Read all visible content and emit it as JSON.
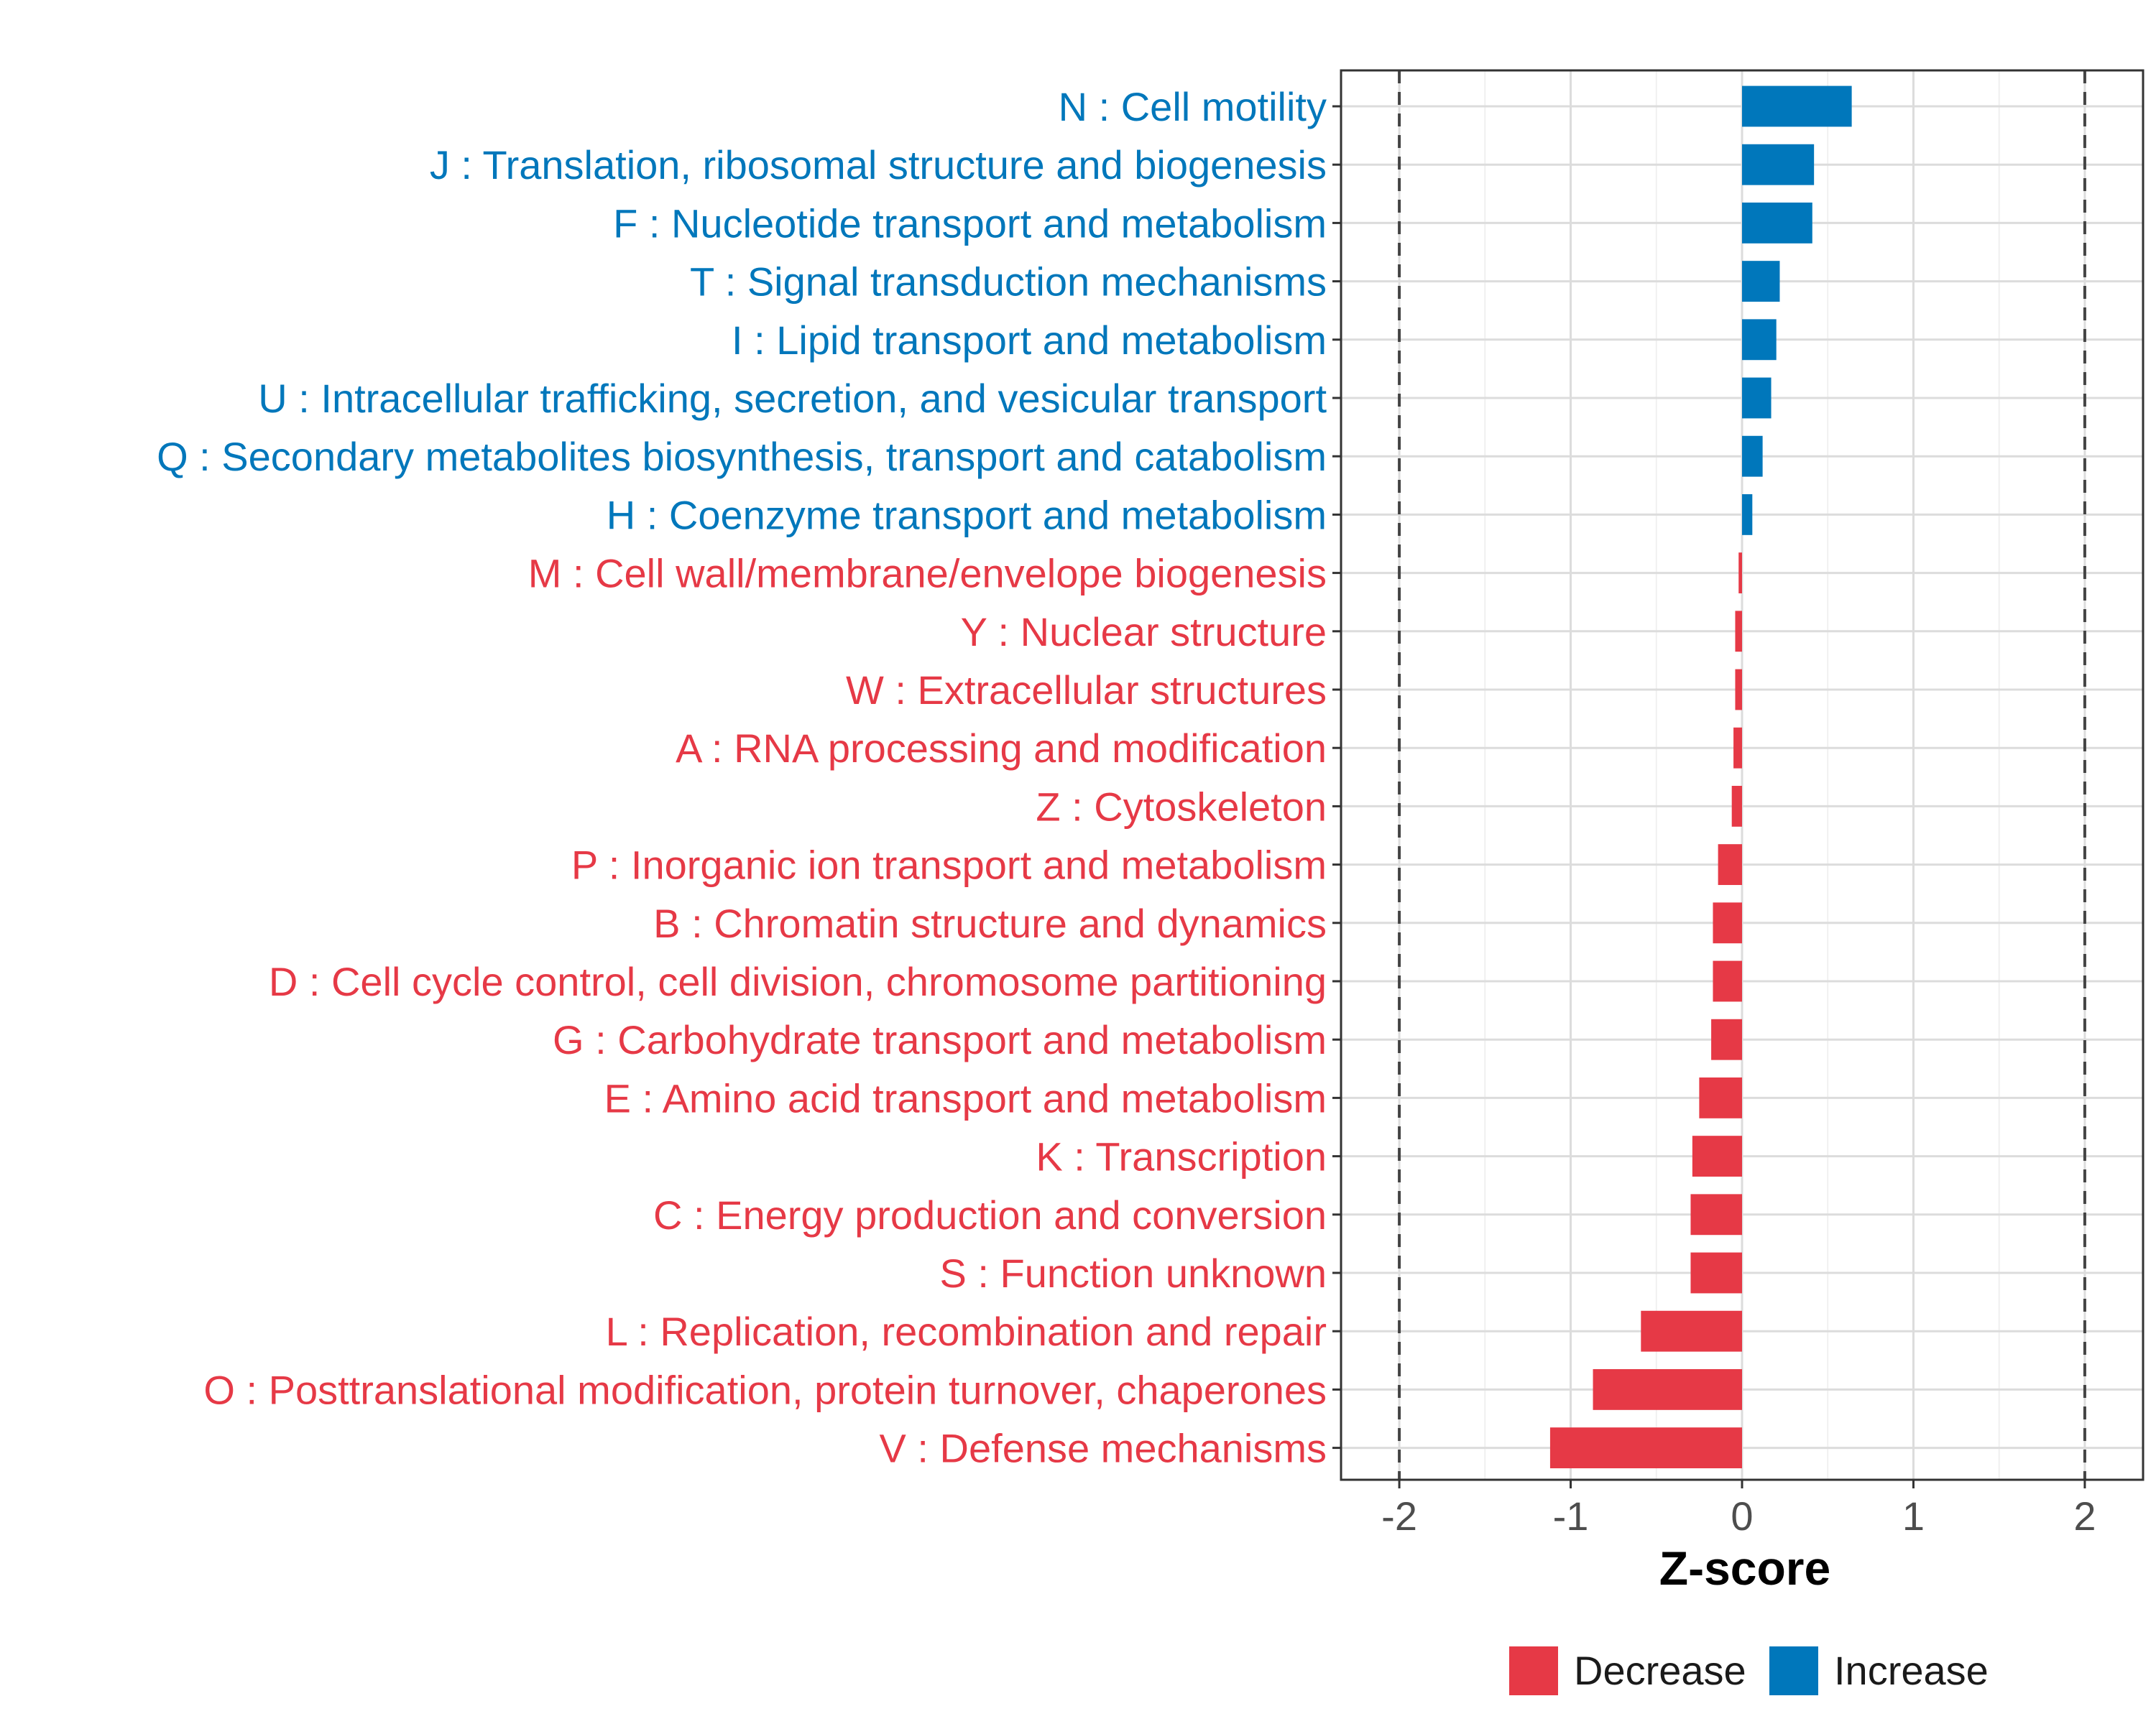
{
  "chart_data": {
    "type": "bar",
    "orientation": "horizontal",
    "xlabel": "Z-score",
    "ylabel": "",
    "xlim": [
      -2.34,
      2.34
    ],
    "xticks": [
      -2,
      -1,
      0,
      1,
      2
    ],
    "xtick_labels": [
      "-2",
      "-1",
      "0",
      "1",
      "2"
    ],
    "reference_lines": [
      -2,
      2
    ],
    "grid": true,
    "legend_position": "bottom",
    "colors": {
      "Decrease": "#e63946",
      "Increase": "#0077bb"
    },
    "legend": [
      {
        "name": "Decrease",
        "color": "#e63946"
      },
      {
        "name": "Increase",
        "color": "#0077bb"
      }
    ],
    "categories": [
      "N : Cell motility",
      "J : Translation, ribosomal structure and biogenesis",
      "F : Nucleotide transport and metabolism",
      "T : Signal transduction mechanisms",
      "I : Lipid transport and metabolism",
      "U : Intracellular trafficking, secretion, and vesicular transport",
      "Q : Secondary metabolites biosynthesis, transport and catabolism",
      "H : Coenzyme transport and metabolism",
      "M : Cell wall/membrane/envelope biogenesis",
      "Y : Nuclear structure",
      "W : Extracellular structures",
      "A : RNA processing and modification",
      "Z : Cytoskeleton",
      "P : Inorganic ion transport and metabolism",
      "B : Chromatin structure and dynamics",
      "D : Cell cycle control, cell division, chromosome partitioning",
      "G : Carbohydrate transport and metabolism",
      "E : Amino acid transport and metabolism",
      "K : Transcription",
      "C : Energy production and conversion",
      "S : Function unknown",
      "L : Replication, recombination and repair",
      "O : Posttranslational modification, protein turnover, chaperones",
      "V : Defense mechanisms"
    ],
    "values": [
      0.64,
      0.42,
      0.41,
      0.22,
      0.2,
      0.17,
      0.12,
      0.06,
      -0.02,
      -0.04,
      -0.04,
      -0.05,
      -0.06,
      -0.14,
      -0.17,
      -0.17,
      -0.18,
      -0.25,
      -0.29,
      -0.3,
      -0.3,
      -0.59,
      -0.87,
      -1.12
    ],
    "groups": [
      "Increase",
      "Increase",
      "Increase",
      "Increase",
      "Increase",
      "Increase",
      "Increase",
      "Increase",
      "Decrease",
      "Decrease",
      "Decrease",
      "Decrease",
      "Decrease",
      "Decrease",
      "Decrease",
      "Decrease",
      "Decrease",
      "Decrease",
      "Decrease",
      "Decrease",
      "Decrease",
      "Decrease",
      "Decrease",
      "Decrease"
    ]
  }
}
